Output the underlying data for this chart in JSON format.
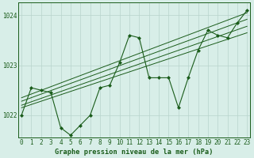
{
  "title": "Graphe pression niveau de la mer (hPa)",
  "background_color": "#d8eee8",
  "plot_bg_color": "#d8eee8",
  "grid_color": "#b8d4cc",
  "line_color": "#1a5c1a",
  "x_values": [
    0,
    1,
    2,
    3,
    4,
    5,
    6,
    7,
    8,
    9,
    10,
    11,
    12,
    13,
    14,
    15,
    16,
    17,
    18,
    19,
    20,
    21,
    22,
    23
  ],
  "y_values": [
    1022.0,
    1022.55,
    1022.5,
    1022.45,
    1021.75,
    1021.6,
    1021.8,
    1022.0,
    1022.55,
    1022.6,
    1023.05,
    1023.6,
    1023.55,
    1022.75,
    1022.75,
    1022.75,
    1022.15,
    1022.75,
    1023.3,
    1023.7,
    1023.6,
    1023.55,
    1023.85,
    1024.1
  ],
  "trend1_x": [
    0,
    23
  ],
  "trend1_y": [
    1022.15,
    1023.65
  ],
  "trend2_x": [
    0,
    23
  ],
  "trend2_y": [
    1022.2,
    1023.78
  ],
  "trend3_x": [
    0,
    23
  ],
  "trend3_y": [
    1022.28,
    1023.92
  ],
  "trend4_x": [
    0,
    23
  ],
  "trend4_y": [
    1022.35,
    1024.05
  ],
  "ylim": [
    1021.55,
    1024.25
  ],
  "yticks": [
    1022,
    1023,
    1024
  ],
  "xlim": [
    -0.3,
    23.3
  ],
  "tick_fontsize": 5.5,
  "title_fontsize": 6.2
}
